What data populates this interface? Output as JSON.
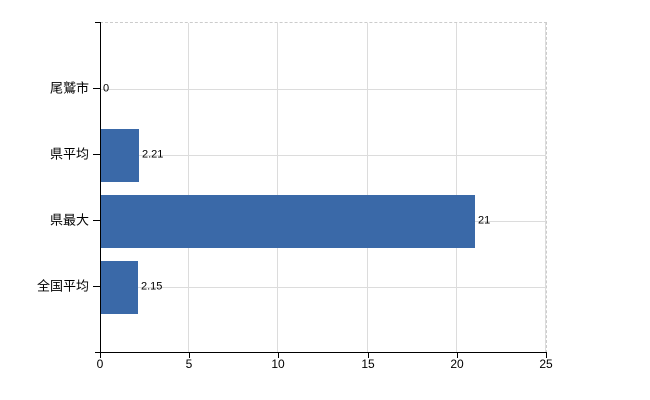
{
  "chart_data": {
    "type": "bar",
    "orientation": "horizontal",
    "categories": [
      "尾鷲市",
      "県平均",
      "県最大",
      "全国平均"
    ],
    "values": [
      0,
      2.21,
      21,
      2.15
    ],
    "value_labels": [
      "0",
      "2.21",
      "21",
      "2.15"
    ],
    "xlim": [
      0,
      25
    ],
    "x_ticks": [
      0,
      5,
      10,
      15,
      20,
      25
    ],
    "x_tick_labels": [
      "0",
      "5",
      "10",
      "15",
      "20",
      "25"
    ],
    "bar_color": "#3a69a8",
    "grid": true,
    "gridline_color": "#dcdcdc",
    "axis_color": "#000000",
    "plot_border_color": "#cccccc",
    "background": "#ffffff",
    "legend": "none"
  }
}
